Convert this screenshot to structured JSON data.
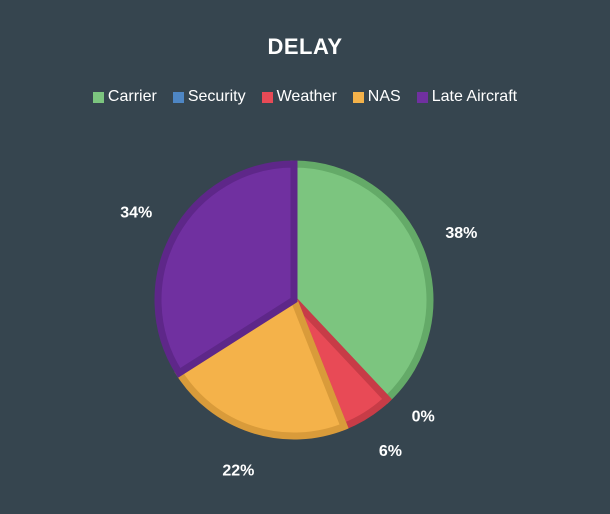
{
  "chart_data": {
    "type": "pie",
    "title": "DELAY",
    "legend_position": "top",
    "slices": [
      {
        "name": "Carrier",
        "value": 38,
        "label": "38%",
        "color": "#7cc57f",
        "stroke": "#64aa68"
      },
      {
        "name": "Security",
        "value": 0,
        "label": "0%",
        "color": "#4e86c4",
        "stroke": "#3f72ab"
      },
      {
        "name": "Weather",
        "value": 6,
        "label": "6%",
        "color": "#e84a56",
        "stroke": "#c73c47"
      },
      {
        "name": "NAS",
        "value": 22,
        "label": "22%",
        "color": "#f4b24a",
        "stroke": "#d99b3a"
      },
      {
        "name": "Late Aircraft",
        "value": 34,
        "label": "34%",
        "color": "#7030a0",
        "stroke": "#5e2789"
      }
    ]
  }
}
